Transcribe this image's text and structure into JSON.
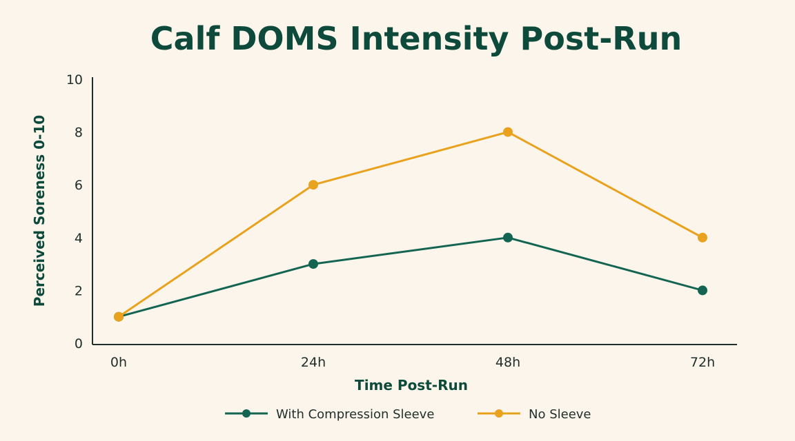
{
  "chart_data": {
    "type": "line",
    "title": "Calf DOMS Intensity Post-Run",
    "xlabel": "Time Post-Run",
    "ylabel": "Perceived Soreness 0-10",
    "categories": [
      "0h",
      "24h",
      "48h",
      "72h"
    ],
    "ylim": [
      0,
      10
    ],
    "yticks": [
      "0",
      "2",
      "4",
      "6",
      "8",
      "10"
    ],
    "grid": false,
    "legend_position": "bottom",
    "series": [
      {
        "name": "With Compression Sleeve",
        "values": [
          1,
          3,
          4,
          2
        ],
        "color": "#136552"
      },
      {
        "name": "No Sleeve",
        "values": [
          1,
          6,
          8,
          4
        ],
        "color": "#e9a21d"
      }
    ]
  }
}
